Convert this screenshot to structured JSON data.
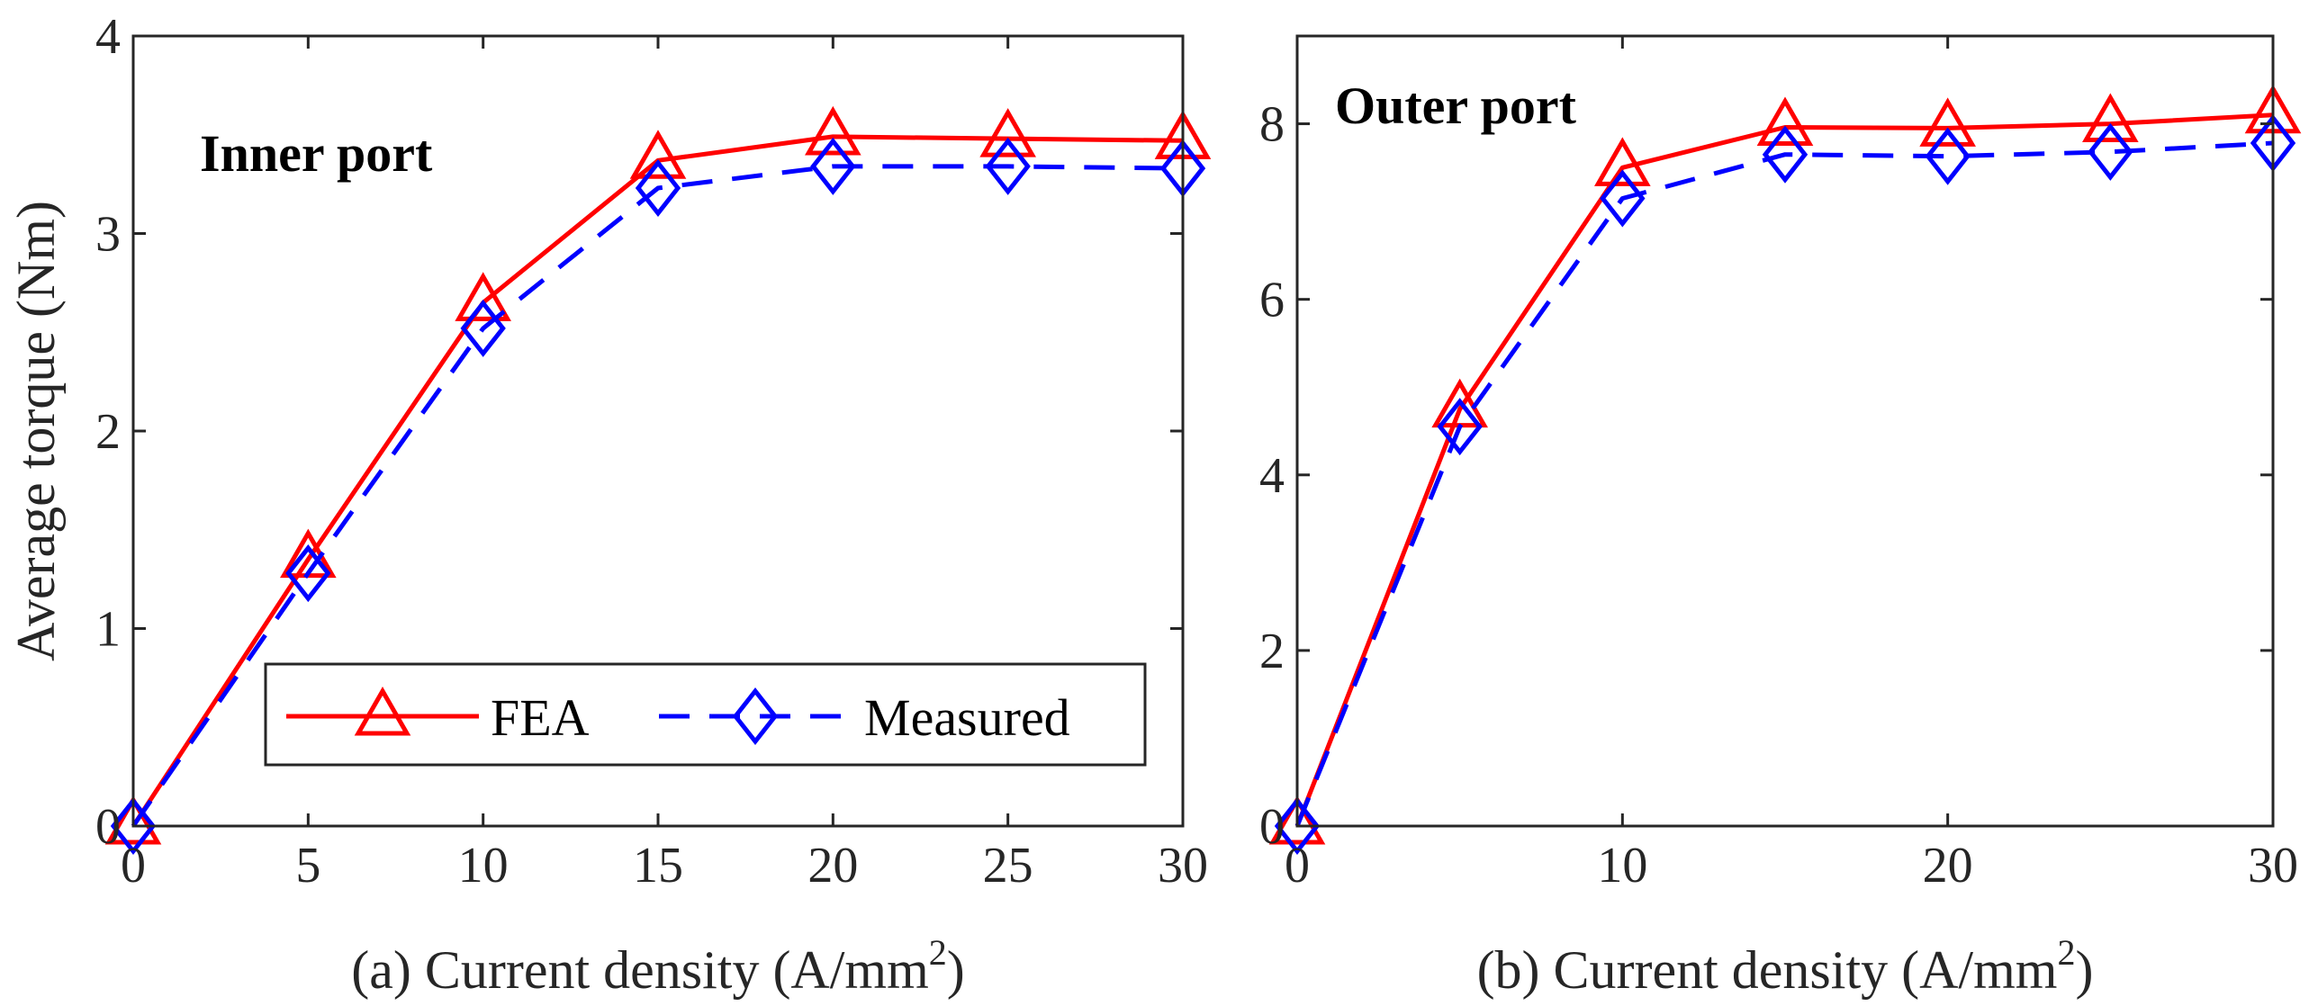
{
  "colors": {
    "fea": "#ff0000",
    "measured": "#0000ff",
    "axis": "#262626"
  },
  "legend": {
    "fea": "FEA",
    "measured": "Measured"
  },
  "chart_data": [
    {
      "type": "line",
      "panel": "a",
      "annotation": "Inner port",
      "xlabel_main": "(a) Current density (A/mm",
      "xlabel_sup": "2",
      "xlabel_end": ")",
      "ylabel": "Average torque (Nm)",
      "xlim": [
        0,
        30
      ],
      "ylim": [
        0,
        4
      ],
      "xticks": [
        0,
        5,
        10,
        15,
        20,
        25,
        30
      ],
      "yticks": [
        0,
        1,
        2,
        3,
        4
      ],
      "x": [
        0,
        5,
        10,
        15,
        20,
        25,
        30
      ],
      "series": [
        {
          "name": "FEA",
          "marker": "triangle",
          "style": "solid",
          "values": [
            0,
            1.35,
            2.65,
            3.37,
            3.49,
            3.48,
            3.47
          ]
        },
        {
          "name": "Measured",
          "marker": "diamond",
          "style": "dashed",
          "values": [
            0,
            1.28,
            2.52,
            3.23,
            3.34,
            3.34,
            3.33
          ]
        }
      ]
    },
    {
      "type": "line",
      "panel": "b",
      "annotation": "Outer port",
      "xlabel_main": "(b) Current density (A/mm",
      "xlabel_sup": "2",
      "xlabel_end": ")",
      "ylabel": "",
      "xlim": [
        0,
        30
      ],
      "ylim": [
        0,
        9
      ],
      "xticks": [
        0,
        10,
        20,
        30
      ],
      "yticks": [
        0,
        2,
        4,
        6,
        8
      ],
      "x": [
        0,
        5,
        10,
        15,
        20,
        25,
        30
      ],
      "series": [
        {
          "name": "FEA",
          "marker": "triangle",
          "style": "solid",
          "values": [
            0,
            4.75,
            7.5,
            7.96,
            7.95,
            8.0,
            8.1
          ]
        },
        {
          "name": "Measured",
          "marker": "diamond",
          "style": "dashed",
          "values": [
            0,
            4.55,
            7.15,
            7.65,
            7.63,
            7.68,
            7.78
          ]
        }
      ]
    }
  ]
}
